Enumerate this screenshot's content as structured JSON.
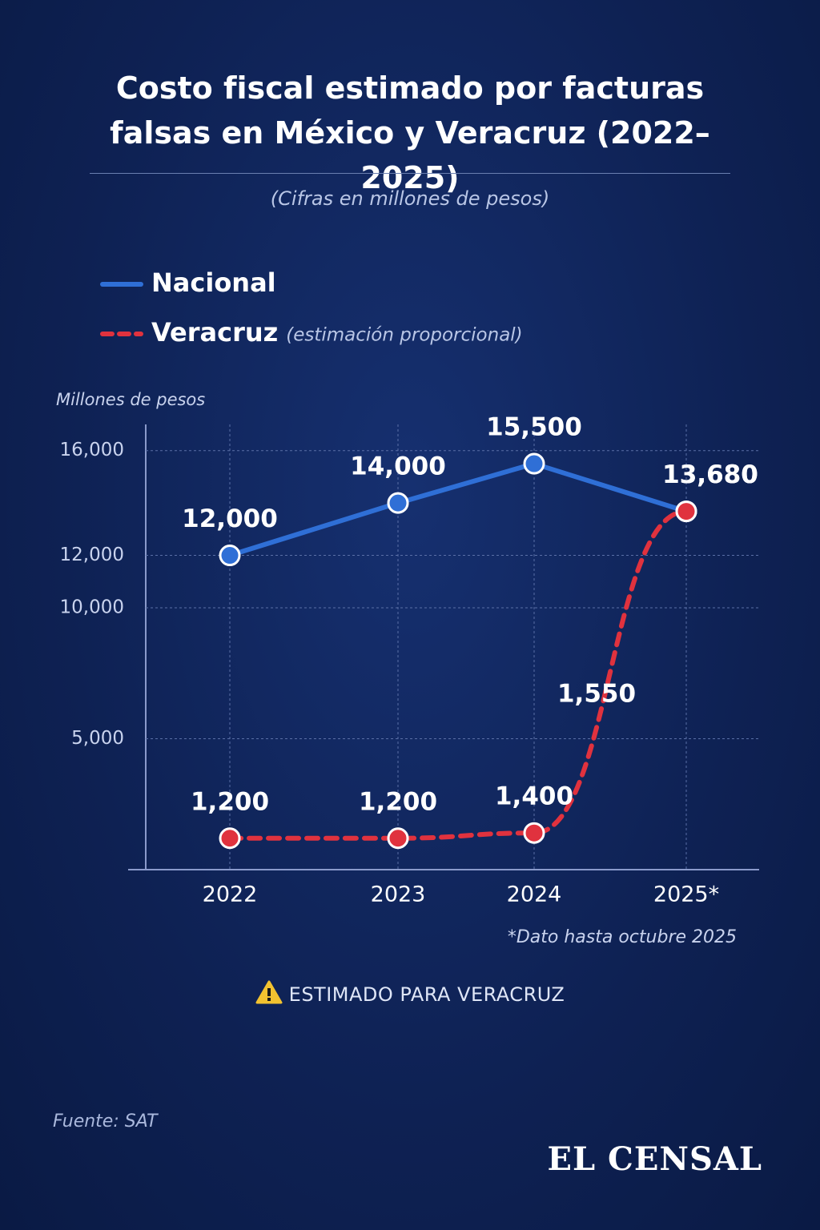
{
  "chart_data": {
    "type": "line",
    "title": "Costo fiscal estimado por facturas falsas en México y Veracruz (2022–2025)",
    "subtitle": "(Cifras en millones de pesos)",
    "y_label": "Millones de pesos",
    "categories": [
      "2022",
      "2023",
      "2024",
      "2025*"
    ],
    "series": [
      {
        "name": "Nacional",
        "color": "#2f6fd6",
        "dashed": false,
        "values": [
          12000,
          14000,
          15500,
          13680
        ],
        "value_labels": [
          "12,000",
          "14,000",
          "15,500",
          "13,680"
        ]
      },
      {
        "name": "Veracruz",
        "name_note": "(estimación proporcional)",
        "color": "#e0323e",
        "dashed": true,
        "values": [
          1200,
          1200,
          1400,
          13680
        ],
        "value_labels": [
          "1,200",
          "1,200",
          "1,400",
          "13,680"
        ]
      }
    ],
    "annotation": "1,550",
    "ylim": [
      0,
      17000
    ],
    "yticks": [
      {
        "value": 5000,
        "label": "5,000"
      },
      {
        "value": 10000,
        "label": "10,000"
      },
      {
        "value": 12000,
        "label": "12,000"
      },
      {
        "value": 16000,
        "label": "16,000"
      }
    ],
    "grid": true,
    "footnote": "*Dato hasta octubre 2025",
    "warning": "ESTIMADO PARA VERACRUZ",
    "source": "Fuente: SAT",
    "brand": "EL CENSAL"
  }
}
